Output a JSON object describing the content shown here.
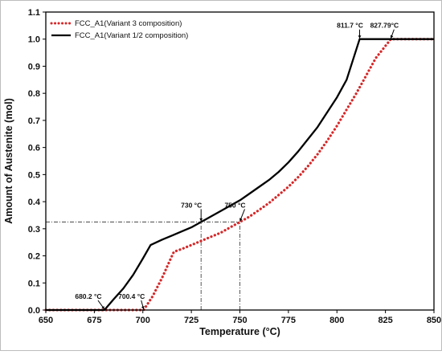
{
  "chart_data": {
    "type": "line",
    "xlabel": "Temperature (°C)",
    "ylabel": "Amount of Austenite (mol)",
    "xlim": [
      650,
      850
    ],
    "ylim": [
      0,
      1.1
    ],
    "x_ticks": [
      650,
      675,
      700,
      725,
      750,
      775,
      800,
      825,
      850
    ],
    "y_ticks": [
      0.0,
      0.1,
      0.2,
      0.3,
      0.4,
      0.5,
      0.6,
      0.7,
      0.8,
      0.9,
      1.0,
      1.1
    ],
    "x_tick_labels": [
      "650",
      "675",
      "700",
      "725",
      "750",
      "775",
      "800",
      "825",
      "850"
    ],
    "y_tick_labels": [
      "0.0",
      "0.1",
      "0.2",
      "0.3",
      "0.4",
      "0.5",
      "0.6",
      "0.7",
      "0.8",
      "0.9",
      "1.0",
      "1.1"
    ],
    "legend_position": "top-left",
    "grid": false,
    "series": [
      {
        "name": "FCC_A1(Variant 3 composition)",
        "color": "#d62728",
        "style": "dotted",
        "points": [
          [
            650,
            0
          ],
          [
            700.4,
            0
          ],
          [
            705,
            0.05
          ],
          [
            710,
            0.12
          ],
          [
            715,
            0.2
          ],
          [
            716,
            0.215
          ],
          [
            720,
            0.225
          ],
          [
            725,
            0.24
          ],
          [
            730,
            0.255
          ],
          [
            735,
            0.27
          ],
          [
            740,
            0.285
          ],
          [
            745,
            0.305
          ],
          [
            750,
            0.325
          ],
          [
            755,
            0.345
          ],
          [
            760,
            0.37
          ],
          [
            765,
            0.395
          ],
          [
            770,
            0.425
          ],
          [
            775,
            0.455
          ],
          [
            780,
            0.49
          ],
          [
            785,
            0.53
          ],
          [
            790,
            0.575
          ],
          [
            795,
            0.625
          ],
          [
            800,
            0.68
          ],
          [
            805,
            0.74
          ],
          [
            810,
            0.8
          ],
          [
            815,
            0.865
          ],
          [
            820,
            0.93
          ],
          [
            827.79,
            1.0
          ],
          [
            850,
            1.0
          ]
        ]
      },
      {
        "name": "FCC_A1(Variant 1/2 composition)",
        "color": "#000000",
        "style": "solid",
        "points": [
          [
            650,
            0
          ],
          [
            680.2,
            0
          ],
          [
            685,
            0.04
          ],
          [
            690,
            0.08
          ],
          [
            695,
            0.13
          ],
          [
            700,
            0.19
          ],
          [
            704,
            0.24
          ],
          [
            710,
            0.26
          ],
          [
            715,
            0.275
          ],
          [
            720,
            0.29
          ],
          [
            725,
            0.305
          ],
          [
            730,
            0.325
          ],
          [
            735,
            0.345
          ],
          [
            740,
            0.365
          ],
          [
            745,
            0.385
          ],
          [
            750,
            0.405
          ],
          [
            755,
            0.43
          ],
          [
            760,
            0.455
          ],
          [
            765,
            0.48
          ],
          [
            770,
            0.51
          ],
          [
            775,
            0.545
          ],
          [
            780,
            0.585
          ],
          [
            785,
            0.63
          ],
          [
            790,
            0.675
          ],
          [
            795,
            0.73
          ],
          [
            800,
            0.785
          ],
          [
            805,
            0.85
          ],
          [
            811.7,
            1.0
          ],
          [
            850,
            1.0
          ]
        ]
      }
    ],
    "reference_lines": [
      {
        "type": "horizontal",
        "y": 0.325,
        "x_from": 650,
        "x_to": 750
      },
      {
        "type": "vertical",
        "x": 730,
        "y_from": 0,
        "y_to": 0.325
      },
      {
        "type": "vertical",
        "x": 750,
        "y_from": 0,
        "y_to": 0.325
      }
    ],
    "annotations": [
      {
        "text": "680.2 °C",
        "x": 680.2,
        "y": 0
      },
      {
        "text": "700.4 °C",
        "x": 700.4,
        "y": 0
      },
      {
        "text": "730 °C",
        "x": 730,
        "y": 0.325
      },
      {
        "text": "750 °C",
        "x": 750,
        "y": 0.325
      },
      {
        "text": "811.7 °C",
        "x": 811.7,
        "y": 1.0
      },
      {
        "text": "827.79°C",
        "x": 827.79,
        "y": 1.0
      }
    ]
  }
}
